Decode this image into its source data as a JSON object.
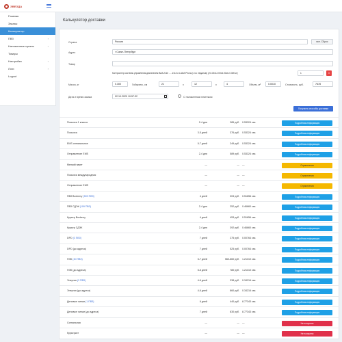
{
  "brand": {
    "name": "ЗВЕЗДА",
    "logo_color": "#c0392b"
  },
  "sidebar": {
    "items": [
      {
        "label": "Главная",
        "chevron": "",
        "active": false
      },
      {
        "label": "Заказы",
        "chevron": "",
        "active": false
      },
      {
        "label": "Калькулятор",
        "chevron": "",
        "active": true
      },
      {
        "label": "ПВЗ",
        "chevron": "›",
        "active": false
      },
      {
        "label": "Наложенные пункты",
        "chevron": "›",
        "active": false
      },
      {
        "label": "Товары",
        "chevron": "",
        "active": false
      },
      {
        "label": "Настройки",
        "chevron": "›",
        "active": false
      },
      {
        "label": "Логи",
        "chevron": "›",
        "active": false
      },
      {
        "label": "Logout",
        "chevron": "",
        "active": false
      }
    ]
  },
  "page": {
    "title": "Калькулятор доставки"
  },
  "form": {
    "country_label": "Страна",
    "country_value": "Россия",
    "reset_button": "все. Сброс",
    "address_label": "Адрес",
    "address_value": "г Санкт-Петербург",
    "product_label": "Товар",
    "product_value": "",
    "product_desc": "Контроллер системы управления двигателем ВАЗ-2110 ... -2112 и LADA Priora (с эл. педалью) (21.00x12.00x4.00см 0.300 кг)",
    "product_qty": "1",
    "remove_button": "×",
    "weight_label": "Масса, кг",
    "weight_value": "0.300",
    "dims_label": "Габариты, см",
    "dim_l": "21",
    "dim_x1": "x",
    "dim_w": "12",
    "dim_x2": "x",
    "dim_h": "4",
    "volume_label": "Объем, м³",
    "volume_value": "0.0010",
    "cost_label": "Стоимость, руб.",
    "cost_value": "7678",
    "datetime_label": "Дата и время заказа",
    "datetime_value": "02.10.2020 10:57:32",
    "cod_label": "С наложенным платежом",
    "submit_button": "Получить способы доставки"
  },
  "results": [
    {
      "name": "Посылка 1 класса",
      "link": "",
      "days": "2-4 дня",
      "price": "285 руб.",
      "time": "0.53324 сек.",
      "action": "Подробная информация",
      "status": "info"
    },
    {
      "name": "Посылка",
      "link": "",
      "days": "3-5 дней",
      "price": "376 руб.",
      "time": "0.53324 сек.",
      "action": "Подробная информация",
      "status": "info"
    },
    {
      "name": "EMS оптимальное",
      "link": "",
      "days": "5-7 дней",
      "price": "249 руб.",
      "time": "0.53324 сек.",
      "action": "Подробная информация",
      "status": "info"
    },
    {
      "name": "Отправление EMS",
      "link": "",
      "days": "2-4 дня",
      "price": "589 руб.",
      "time": "0.53324 сек.",
      "action": "Подробная информация",
      "status": "info"
    },
    {
      "name": "Мелкий пакет",
      "link": "",
      "days": "—",
      "price": "—",
      "time": "—",
      "action": "Ограничения",
      "status": "warn"
    },
    {
      "name": "Посылка международная",
      "link": "",
      "days": "—",
      "price": "—",
      "time": "—",
      "action": "Ограничения",
      "status": "warn"
    },
    {
      "name": "Отправление EMS",
      "link": "",
      "days": "—",
      "price": "—",
      "time": "—",
      "action": "Ограничения",
      "status": "warn"
    },
    {
      "name": "ПВЗ Boxberry ",
      "link": "(509 ПВЗ)",
      "days": "4 дней",
      "price": "303 руб.",
      "time": "0.51656 сек.",
      "action": "Подробная информация",
      "status": "info"
    },
    {
      "name": "ПВЗ СДЭК ",
      "link": "(109 ПВЗ)",
      "days": "2-4 дня",
      "price": "252 руб.",
      "time": "0.46660 сек.",
      "action": "Подробная информация",
      "status": "info"
    },
    {
      "name": "Курьер Boxberry",
      "link": "",
      "days": "4 дней",
      "price": "453 руб.",
      "time": "0.51656 сек.",
      "action": "Подробная информация",
      "status": "info"
    },
    {
      "name": "Курьер СДЭК",
      "link": "",
      "days": "2-4 дня",
      "price": "392 руб.",
      "time": "0.46660 сек.",
      "action": "Подробная информация",
      "status": "info"
    },
    {
      "name": "DPD ",
      "link": "(3 ПВЗ)",
      "days": "7 дней",
      "price": "275 руб.",
      "time": "0.00764 сек.",
      "action": "Подробная информация",
      "status": "info"
    },
    {
      "name": "DPD (до адреса)",
      "link": "",
      "days": "7 дней",
      "price": "525 руб.",
      "time": "0.00764 сек.",
      "action": "Подробная информация",
      "status": "info"
    },
    {
      "name": "ПЭК ",
      "link": "(40 ПВЗ)",
      "days": "5-7 дней",
      "price": "560-660 руб.",
      "time": "1.21310 сек.",
      "action": "Подробная информация",
      "status": "info"
    },
    {
      "name": "ПЭК (до адреса)",
      "link": "",
      "days": "5-6 дней",
      "price": "780 руб.",
      "time": "1.21310 сек.",
      "action": "Подробная информация",
      "status": "info"
    },
    {
      "name": "Энергия ",
      "link": "(3 ПВЗ)",
      "days": "4-6 дней",
      "price": "338 руб.",
      "time": "0.34216 сек.",
      "action": "Подробная информация",
      "status": "info"
    },
    {
      "name": "Энергия (до адреса)",
      "link": "",
      "days": "4-6 дней",
      "price": "860 руб.",
      "time": "0.34216 сек.",
      "action": "Подробная информация",
      "status": "info"
    },
    {
      "name": "Деловые линии ",
      "link": "(1 ПВЗ)",
      "days": "6 дней",
      "price": "440 руб.",
      "time": "8.77343 сек.",
      "action": "Подробная информация",
      "status": "info"
    },
    {
      "name": "Деловые линии (до адреса)",
      "link": "",
      "days": "7 дней",
      "price": "830 руб.",
      "time": "8.77343 сек.",
      "action": "Подробная информация",
      "status": "info"
    },
    {
      "name": "Сигнальная",
      "link": "",
      "days": "—",
      "price": "—",
      "time": "—",
      "action": "Не получено",
      "status": "error"
    },
    {
      "name": "Курьерист",
      "link": "",
      "days": "—",
      "price": "—",
      "time": "—",
      "action": "Не получено",
      "status": "error"
    }
  ],
  "colors": {
    "primary": "#3b6fd8",
    "info": "#1ea0e6",
    "warn": "#f5b800",
    "error": "#e0304a",
    "sidebar_active": "#3a8fd8"
  }
}
